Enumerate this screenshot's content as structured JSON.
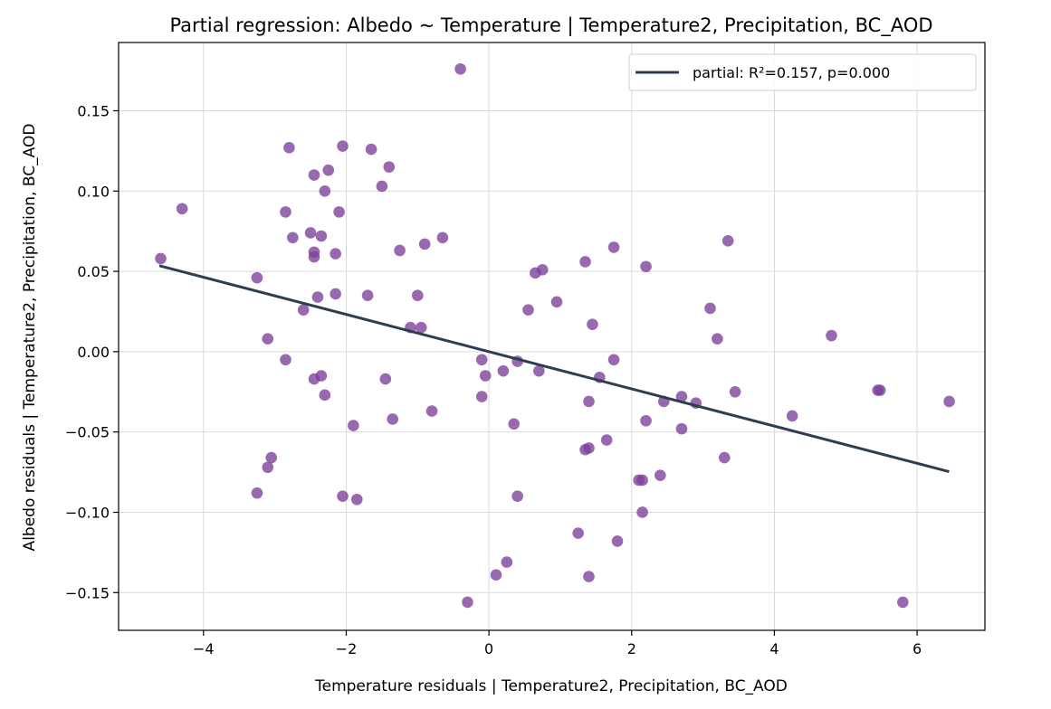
{
  "chart_data": {
    "type": "scatter",
    "title": "Partial regression: Albedo ~ Temperature | Temperature2, Precipitation, BC_AOD",
    "xlabel": "Temperature residuals | Temperature2, Precipitation, BC_AOD",
    "ylabel": "Albedo residuals | Temperature2, Precipitation, BC_AOD",
    "xlim": [
      -5.19,
      6.95
    ],
    "ylim": [
      -0.1735,
      0.1925
    ],
    "xticks": [
      -4,
      -2,
      0,
      2,
      4,
      6
    ],
    "xtick_labels": [
      "−4",
      "−2",
      "0",
      "2",
      "4",
      "6"
    ],
    "yticks": [
      -0.15,
      -0.1,
      -0.05,
      0.0,
      0.05,
      0.1,
      0.15
    ],
    "ytick_labels": [
      "−0.15",
      "−0.10",
      "−0.05",
      "0.00",
      "0.05",
      "0.10",
      "0.15"
    ],
    "grid": true,
    "legend_position": "top-right",
    "point_color": "#7b3f98",
    "line_color": "#2e3d4f",
    "series": [
      {
        "kind": "points",
        "points": [
          [
            -4.6,
            0.058
          ],
          [
            -4.3,
            0.089
          ],
          [
            -3.25,
            0.046
          ],
          [
            -3.25,
            -0.088
          ],
          [
            -3.1,
            0.008
          ],
          [
            -3.1,
            -0.072
          ],
          [
            -3.05,
            -0.066
          ],
          [
            -2.85,
            0.087
          ],
          [
            -2.85,
            -0.005
          ],
          [
            -2.8,
            0.127
          ],
          [
            -2.75,
            0.071
          ],
          [
            -2.6,
            0.026
          ],
          [
            -2.5,
            0.074
          ],
          [
            -2.45,
            0.059
          ],
          [
            -2.45,
            0.062
          ],
          [
            -2.45,
            0.11
          ],
          [
            -2.45,
            -0.017
          ],
          [
            -2.4,
            0.034
          ],
          [
            -2.35,
            0.072
          ],
          [
            -2.35,
            -0.015
          ],
          [
            -2.3,
            -0.027
          ],
          [
            -2.3,
            0.1
          ],
          [
            -2.25,
            0.113
          ],
          [
            -2.15,
            0.036
          ],
          [
            -2.15,
            0.061
          ],
          [
            -2.1,
            0.087
          ],
          [
            -2.05,
            0.128
          ],
          [
            -2.05,
            -0.09
          ],
          [
            -1.9,
            -0.046
          ],
          [
            -1.85,
            -0.092
          ],
          [
            -1.7,
            0.035
          ],
          [
            -1.65,
            0.126
          ],
          [
            -1.5,
            0.103
          ],
          [
            -1.45,
            -0.017
          ],
          [
            -1.4,
            0.115
          ],
          [
            -1.35,
            -0.042
          ],
          [
            -1.25,
            0.063
          ],
          [
            -1.1,
            0.015
          ],
          [
            -1.0,
            0.035
          ],
          [
            -0.95,
            0.015
          ],
          [
            -0.9,
            0.067
          ],
          [
            -0.8,
            -0.037
          ],
          [
            -0.65,
            0.071
          ],
          [
            -0.4,
            0.176
          ],
          [
            -0.3,
            -0.156
          ],
          [
            -0.1,
            -0.028
          ],
          [
            -0.1,
            -0.005
          ],
          [
            -0.05,
            -0.015
          ],
          [
            0.1,
            -0.139
          ],
          [
            0.2,
            -0.012
          ],
          [
            0.25,
            -0.131
          ],
          [
            0.35,
            -0.045
          ],
          [
            0.4,
            -0.09
          ],
          [
            0.4,
            -0.006
          ],
          [
            0.55,
            0.026
          ],
          [
            0.65,
            0.049
          ],
          [
            0.7,
            -0.012
          ],
          [
            0.75,
            0.051
          ],
          [
            0.95,
            0.031
          ],
          [
            1.25,
            -0.113
          ],
          [
            1.35,
            0.056
          ],
          [
            1.35,
            -0.061
          ],
          [
            1.4,
            -0.06
          ],
          [
            1.4,
            -0.14
          ],
          [
            1.4,
            -0.031
          ],
          [
            1.45,
            0.017
          ],
          [
            1.55,
            -0.016
          ],
          [
            1.65,
            -0.055
          ],
          [
            1.75,
            -0.005
          ],
          [
            1.75,
            0.065
          ],
          [
            1.8,
            -0.118
          ],
          [
            2.1,
            -0.08
          ],
          [
            2.15,
            -0.08
          ],
          [
            2.15,
            -0.1
          ],
          [
            2.2,
            0.053
          ],
          [
            2.2,
            -0.043
          ],
          [
            2.4,
            -0.077
          ],
          [
            2.45,
            -0.031
          ],
          [
            2.7,
            -0.028
          ],
          [
            2.7,
            -0.048
          ],
          [
            2.9,
            -0.032
          ],
          [
            3.1,
            0.027
          ],
          [
            3.2,
            0.008
          ],
          [
            3.3,
            -0.066
          ],
          [
            3.35,
            0.069
          ],
          [
            3.45,
            -0.025
          ],
          [
            4.25,
            -0.04
          ],
          [
            4.8,
            0.01
          ],
          [
            5.45,
            -0.024
          ],
          [
            5.48,
            -0.024
          ],
          [
            5.8,
            -0.156
          ],
          [
            6.45,
            -0.031
          ]
        ]
      },
      {
        "kind": "line",
        "name": "partial: R²=0.157, p=0.000",
        "x": [
          -4.6,
          6.43
        ],
        "y": [
          0.0533,
          -0.0745
        ]
      }
    ]
  }
}
